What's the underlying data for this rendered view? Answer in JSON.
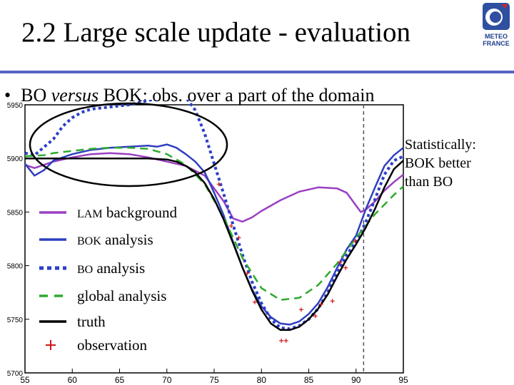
{
  "slide": {
    "title": "2.2 Large scale update - evaluation",
    "bullet_prefix": "BO ",
    "bullet_italic": "versus",
    "bullet_suffix": " BOK: obs. over a part of the domain",
    "note_lines": [
      "Statistically:",
      "BOK better",
      "than BO"
    ],
    "logo_lines": [
      "METEO",
      "FRANCE"
    ]
  },
  "colors": {
    "lam": "#9a3fc2",
    "bok": "#2f3fbf",
    "bo": "#2b3fc7",
    "global": "#2eaa2e",
    "truth": "#000000",
    "obs": "#d01818",
    "rule": "#5b62c4"
  },
  "chart_data": {
    "type": "line",
    "xlim": [
      55,
      95
    ],
    "ylim": [
      5700,
      5950
    ],
    "x_ticks": [
      "55",
      "60",
      "65",
      "70",
      "75",
      "80",
      "85",
      "90",
      "95"
    ],
    "y_ticks": [
      "5700",
      "5750",
      "5800",
      "5850",
      "5900",
      "5950"
    ],
    "vline_x": 90.8,
    "legend": [
      {
        "key": "lam",
        "label_sc": "LAM",
        "label_rest": " background"
      },
      {
        "key": "bok",
        "label_sc": "BOK",
        "label_rest": " analysis"
      },
      {
        "key": "bo",
        "label_sc": "BO",
        "label_rest": " analysis"
      },
      {
        "key": "global",
        "label_sc": "",
        "label_rest": "global analysis"
      },
      {
        "key": "truth",
        "label_sc": "",
        "label_rest": "truth"
      },
      {
        "key": "obs",
        "label_sc": "",
        "label_rest": "observation"
      }
    ],
    "series": [
      {
        "key": "lam",
        "style": "solid",
        "x": [
          55,
          56,
          58,
          60,
          62,
          64,
          66,
          68,
          70,
          72,
          74,
          76,
          77,
          78,
          79,
          80,
          82,
          84,
          86,
          88,
          89,
          90,
          90.5,
          91,
          92,
          93,
          94,
          95
        ],
        "y": [
          5894,
          5891,
          5897,
          5901,
          5904,
          5905,
          5904,
          5901,
          5897,
          5893,
          5884,
          5860,
          5844,
          5841,
          5845,
          5851,
          5861,
          5869,
          5873,
          5872,
          5868,
          5856,
          5850,
          5852,
          5860,
          5870,
          5878,
          5885
        ]
      },
      {
        "key": "bok",
        "style": "solid",
        "x": [
          55,
          56,
          57,
          58,
          60,
          62,
          64,
          66,
          68,
          69,
          70,
          71,
          72,
          73,
          74,
          75,
          76,
          77,
          78,
          79,
          80,
          81,
          82,
          83,
          84,
          85,
          86,
          87,
          88,
          89,
          90,
          91,
          92,
          93,
          94,
          95
        ],
        "y": [
          5895,
          5884,
          5889,
          5898,
          5904,
          5908,
          5910,
          5911,
          5912,
          5911,
          5913,
          5910,
          5904,
          5897,
          5887,
          5868,
          5847,
          5822,
          5798,
          5778,
          5762,
          5752,
          5746,
          5745,
          5748,
          5755,
          5765,
          5780,
          5798,
          5815,
          5828,
          5852,
          5873,
          5893,
          5903,
          5910
        ]
      },
      {
        "key": "bo",
        "style": "dotted",
        "x": [
          55,
          56,
          58,
          59,
          60,
          61,
          62,
          63,
          64,
          65,
          66,
          67,
          68,
          69,
          70,
          71,
          72,
          73,
          74,
          75,
          76,
          77,
          78,
          79,
          80,
          81,
          82,
          83,
          84,
          85,
          86,
          87,
          88,
          89,
          90,
          91,
          92,
          93,
          94,
          95
        ],
        "y": [
          5905,
          5903,
          5918,
          5930,
          5938,
          5943,
          5946,
          5947,
          5948,
          5949,
          5950,
          5952,
          5954,
          5956,
          5958,
          5960,
          5957,
          5945,
          5923,
          5895,
          5867,
          5838,
          5810,
          5785,
          5765,
          5750,
          5742,
          5741,
          5744,
          5750,
          5760,
          5775,
          5793,
          5810,
          5822,
          5840,
          5862,
          5885,
          5898,
          5902
        ]
      },
      {
        "key": "global",
        "style": "dashed",
        "x": [
          55,
          57,
          58,
          60,
          62,
          64,
          66,
          68,
          70,
          72,
          74,
          76,
          78,
          80,
          82,
          84,
          86,
          88,
          90,
          92,
          94,
          95
        ],
        "y": [
          5902,
          5903,
          5905,
          5907,
          5909,
          5910,
          5910,
          5909,
          5904,
          5894,
          5876,
          5845,
          5807,
          5779,
          5768,
          5770,
          5782,
          5802,
          5826,
          5848,
          5866,
          5874
        ]
      },
      {
        "key": "truth",
        "style": "solid",
        "x": [
          55,
          58,
          60,
          62,
          64,
          66,
          68,
          70,
          71,
          72,
          73,
          74,
          75,
          76,
          77,
          78,
          79,
          80,
          81,
          82,
          83,
          84,
          85,
          86,
          87,
          88,
          89,
          90,
          91,
          92,
          93,
          94,
          95
        ],
        "y": [
          5900,
          5900,
          5900,
          5900,
          5900,
          5900,
          5900,
          5899,
          5897,
          5893,
          5887,
          5877,
          5862,
          5843,
          5821,
          5798,
          5777,
          5759,
          5746,
          5740,
          5740,
          5743,
          5750,
          5760,
          5773,
          5790,
          5806,
          5820,
          5835,
          5853,
          5873,
          5890,
          5898
        ]
      }
    ],
    "observations": {
      "x": [
        75.5,
        76.8,
        77.6,
        78.5,
        79.3,
        84.2,
        85.7,
        86.3,
        87.5,
        88.3,
        88.9,
        89.9,
        82.6,
        82.1
      ],
      "y": [
        5876,
        5837,
        5826,
        5793,
        5766,
        5759,
        5753,
        5764,
        5767,
        5803,
        5798,
        5823,
        5730,
        5730
      ]
    }
  }
}
